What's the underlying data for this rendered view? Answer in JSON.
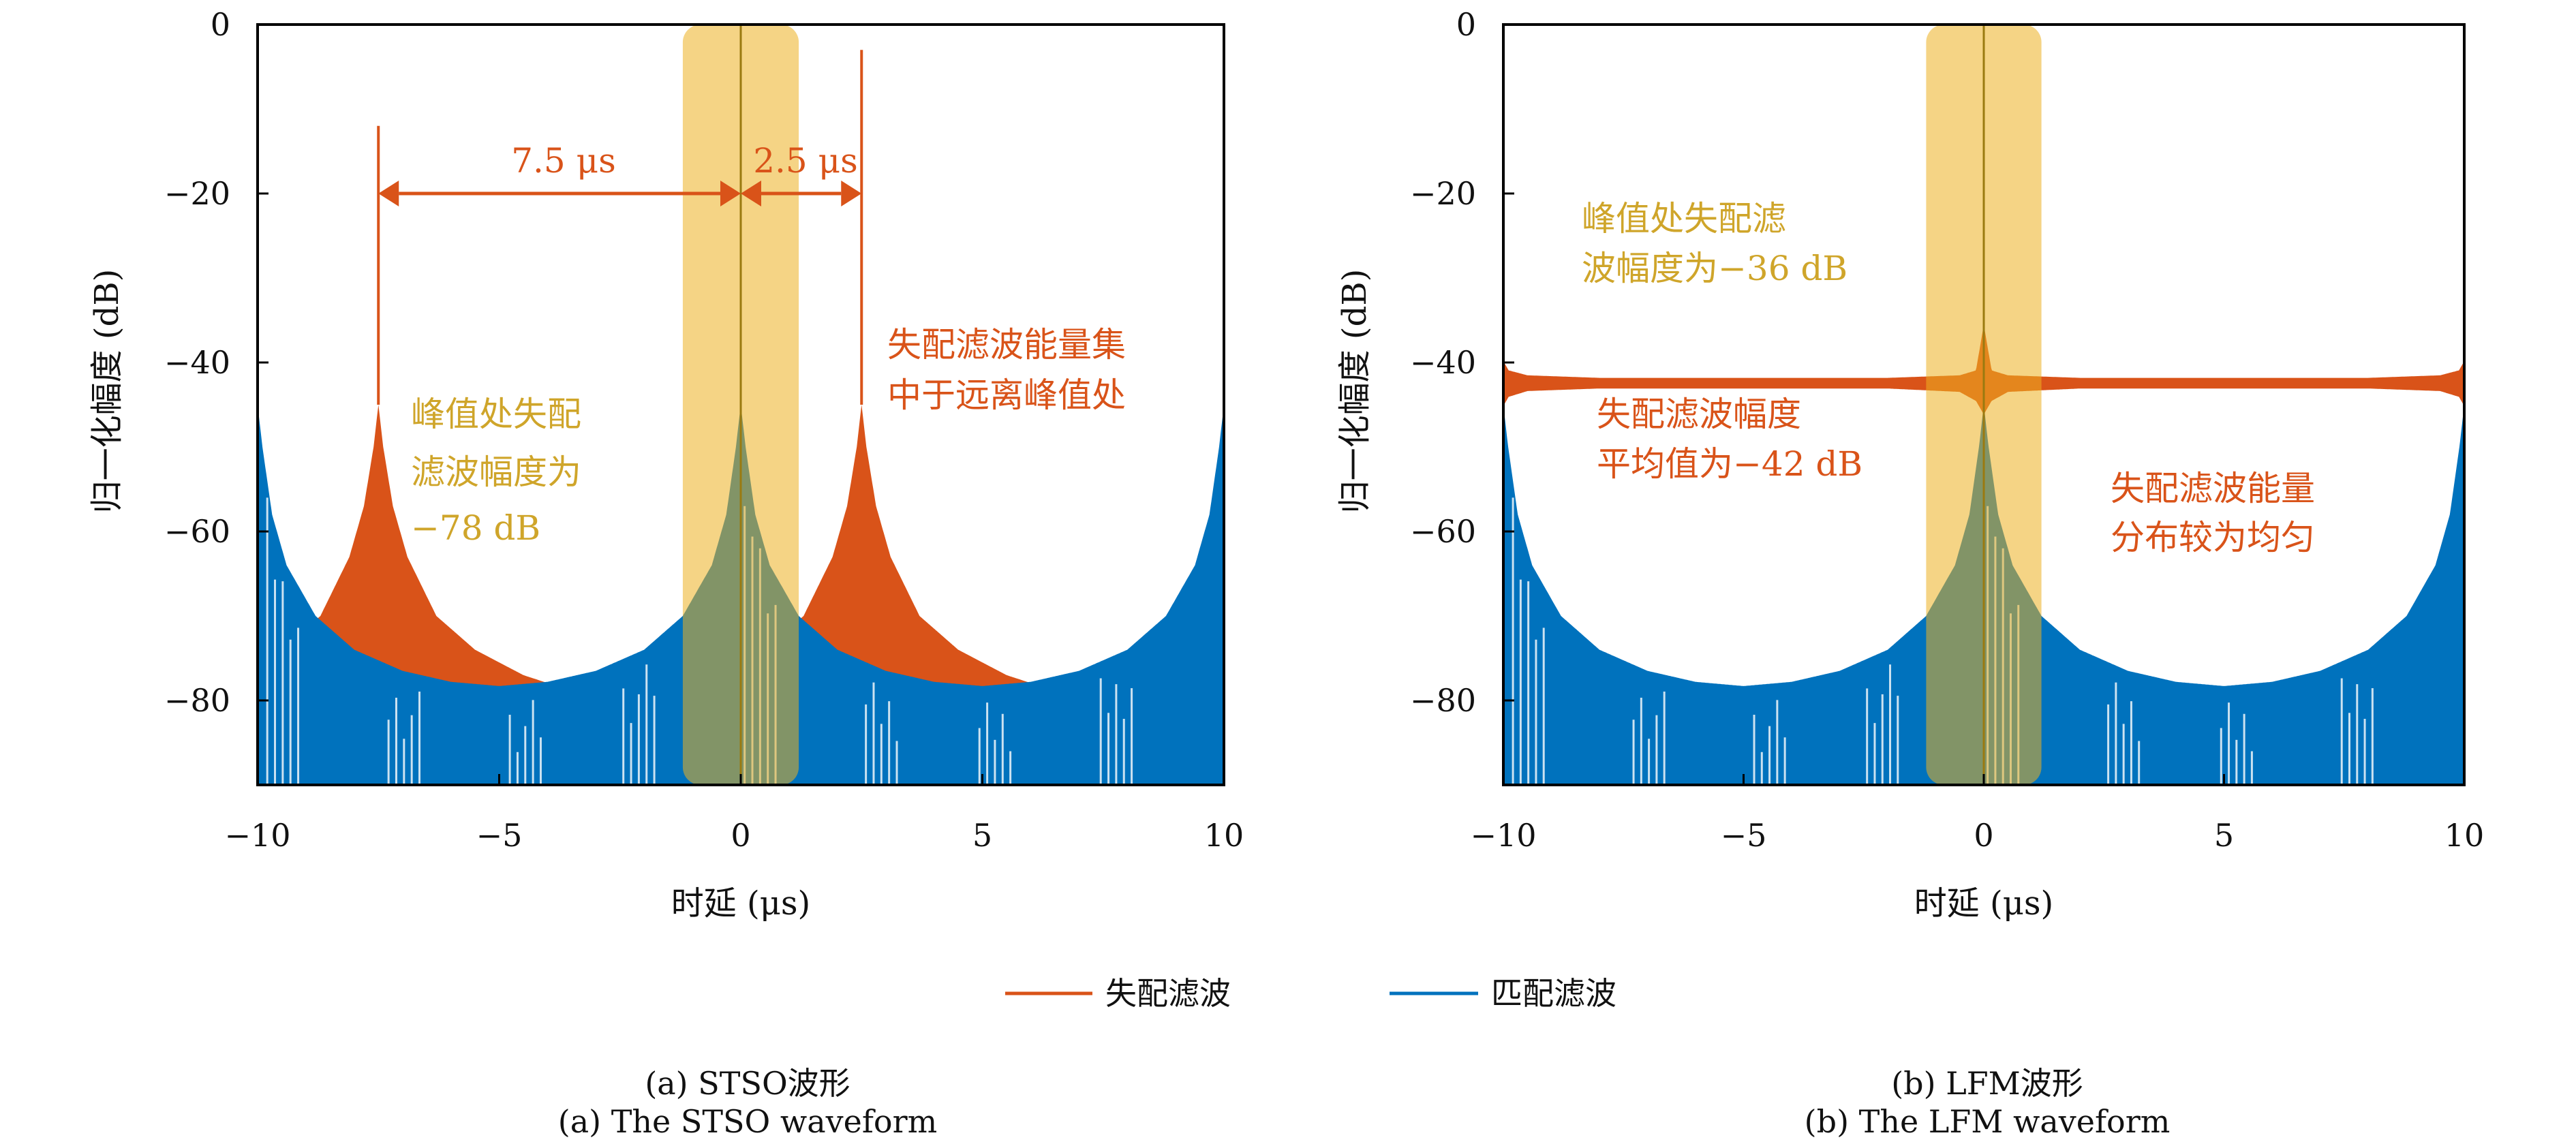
{
  "colors": {
    "mismatch": "#D95319",
    "matched": "#0072BD",
    "highlight": "#EDB120",
    "highlight_text": "#CFA52A",
    "center_line": "#9A7A10"
  },
  "legend": {
    "mismatch": "失配滤波",
    "matched": "匹配滤波"
  },
  "chart_data": [
    {
      "type": "area",
      "panel": "a",
      "caption_cn": "(a) STSO波形",
      "caption_en": "(a) The STSO waveform",
      "xlabel": "时延 (μs)",
      "ylabel": "归一化幅度 (dB)",
      "xlim": [
        -10,
        10
      ],
      "ylim": [
        -90,
        0
      ],
      "xticks": [
        "−10",
        "−5",
        "0",
        "5",
        "10"
      ],
      "xtick_values": [
        -10,
        -5,
        0,
        5,
        10
      ],
      "yticks": [
        "0",
        "−20",
        "−40",
        "−60",
        "−80"
      ],
      "ytick_values": [
        0,
        -20,
        -40,
        -60,
        -80
      ],
      "highlight_range": [
        -1.2,
        1.2
      ],
      "series": [
        {
          "name": "失配滤波",
          "kind": "peaked-lobes",
          "peaks": [
            {
              "x": -7.5,
              "y": -12
            },
            {
              "x": 2.5,
              "y": -3
            }
          ],
          "lobe_profile": [
            [
              0,
              -45
            ],
            [
              0.1,
              -50
            ],
            [
              0.3,
              -57
            ],
            [
              0.6,
              -63
            ],
            [
              1.2,
              -70
            ],
            [
              2,
              -74
            ],
            [
              3,
              -77
            ],
            [
              3.8,
              -78.5
            ],
            [
              4.5,
              -90
            ]
          ]
        },
        {
          "name": "匹配滤波",
          "kind": "u-lobes",
          "peaks": [
            {
              "x": 0,
              "y": 0
            }
          ],
          "lobe_profile": [
            [
              0,
              -45
            ],
            [
              0.1,
              -50
            ],
            [
              0.3,
              -58
            ],
            [
              0.6,
              -64
            ],
            [
              1.2,
              -70
            ],
            [
              2,
              -74
            ],
            [
              3,
              -76.5
            ],
            [
              4,
              -77.8
            ],
            [
              5,
              -78.3
            ]
          ]
        }
      ],
      "annotations": {
        "delay_left": {
          "text": "7.5 μs",
          "from": -7.5,
          "to": 0,
          "y": -20
        },
        "delay_right": {
          "text": "2.5 μs",
          "from": 0,
          "to": 2.5,
          "y": -20
        },
        "note_energy": [
          "失配滤波能量集",
          "中于远离峰值处"
        ],
        "note_peak": [
          "峰值处失配",
          "滤波幅度为",
          "−78 dB"
        ]
      }
    },
    {
      "type": "area",
      "panel": "b",
      "caption_cn": "(b) LFM波形",
      "caption_en": "(b) The LFM waveform",
      "xlabel": "时延 (μs)",
      "ylabel": "归一化幅度 (dB)",
      "xlim": [
        -10,
        10
      ],
      "ylim": [
        -90,
        0
      ],
      "xticks": [
        "−10",
        "−5",
        "0",
        "5",
        "10"
      ],
      "xtick_values": [
        -10,
        -5,
        0,
        5,
        10
      ],
      "yticks": [
        "0",
        "−20",
        "−40",
        "−60",
        "−80"
      ],
      "ytick_values": [
        0,
        -20,
        -40,
        -60,
        -80
      ],
      "highlight_range": [
        -1.2,
        1.2
      ],
      "series": [
        {
          "name": "失配滤波",
          "kind": "band",
          "top": [
            [
              -10,
              -40
            ],
            [
              -9.9,
              -41
            ],
            [
              -9.5,
              -41.6
            ],
            [
              -8,
              -41.9
            ],
            [
              -2,
              -41.9
            ],
            [
              -0.5,
              -41.6
            ],
            [
              -0.15,
              -41
            ],
            [
              0,
              -36
            ],
            [
              0.15,
              -41
            ],
            [
              0.5,
              -41.6
            ],
            [
              2,
              -41.9
            ],
            [
              8,
              -41.9
            ],
            [
              9.5,
              -41.6
            ],
            [
              9.9,
              -41
            ],
            [
              10,
              -40
            ]
          ],
          "bottom": [
            [
              -10,
              -45
            ],
            [
              -9.9,
              -44
            ],
            [
              -9.5,
              -43.3
            ],
            [
              -8,
              -43
            ],
            [
              -2,
              -43
            ],
            [
              -0.5,
              -43.4
            ],
            [
              -0.15,
              -44.5
            ],
            [
              0,
              -46
            ],
            [
              0.15,
              -44.5
            ],
            [
              0.5,
              -43.4
            ],
            [
              2,
              -43
            ],
            [
              8,
              -43
            ],
            [
              9.5,
              -43.3
            ],
            [
              9.9,
              -44
            ],
            [
              10,
              -45
            ]
          ]
        },
        {
          "name": "匹配滤波",
          "kind": "u-lobes",
          "peaks": [
            {
              "x": 0,
              "y": 0
            }
          ],
          "lobe_profile": [
            [
              0,
              -45
            ],
            [
              0.1,
              -50
            ],
            [
              0.3,
              -58
            ],
            [
              0.6,
              -64
            ],
            [
              1.2,
              -70
            ],
            [
              2,
              -74
            ],
            [
              3,
              -76.5
            ],
            [
              4,
              -77.8
            ],
            [
              5,
              -78.3
            ]
          ]
        }
      ],
      "annotations": {
        "note_peak": [
          "峰值处失配滤",
          "波幅度为−36 dB"
        ],
        "note_mean": [
          "失配滤波幅度",
          "平均值为−42 dB"
        ],
        "note_energy": [
          "失配滤波能量",
          "分布较为均匀"
        ]
      }
    }
  ]
}
